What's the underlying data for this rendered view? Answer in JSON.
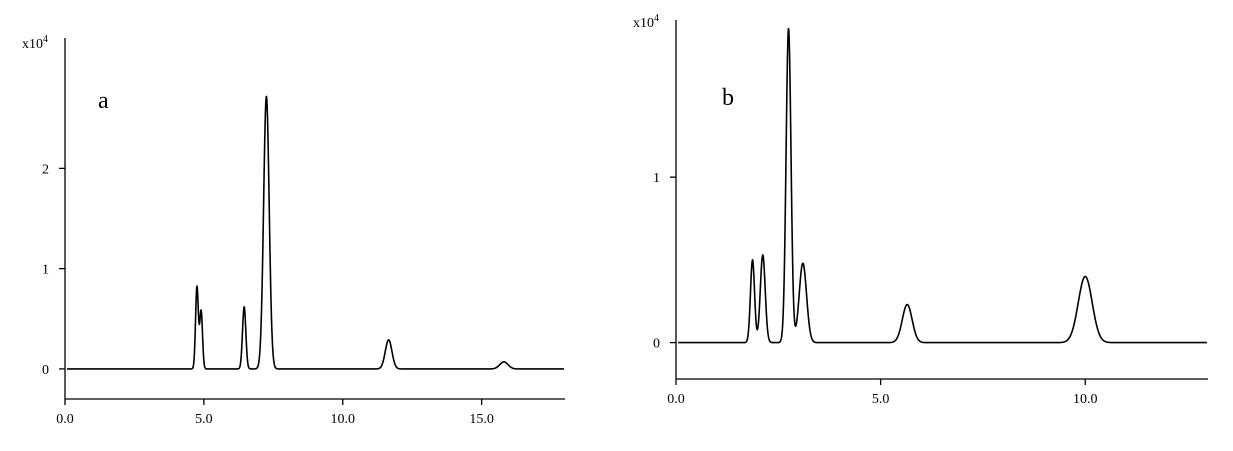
{
  "chart_data": [
    {
      "type": "line",
      "panel_label": "a",
      "y_multiplier": "x10",
      "y_multiplier_exp": "4",
      "xlim": [
        0,
        18
      ],
      "ylim": [
        -0.3,
        3.3
      ],
      "baseline": 0,
      "xticks": [
        {
          "v": 0,
          "label": "0.0"
        },
        {
          "v": 5,
          "label": "5.0"
        },
        {
          "v": 10,
          "label": "10.0"
        },
        {
          "v": 15,
          "label": "15.0"
        }
      ],
      "yticks": [
        {
          "v": 0,
          "label": "0"
        },
        {
          "v": 1,
          "label": "1"
        },
        {
          "v": 2,
          "label": "2"
        }
      ],
      "peaks": [
        {
          "x": 4.75,
          "height": 0.82,
          "width": 0.05
        },
        {
          "x": 4.9,
          "height": 0.58,
          "width": 0.05
        },
        {
          "x": 6.45,
          "height": 0.62,
          "width": 0.06
        },
        {
          "x": 7.25,
          "height": 2.72,
          "width": 0.1
        },
        {
          "x": 11.65,
          "height": 0.29,
          "width": 0.12
        },
        {
          "x": 15.8,
          "height": 0.07,
          "width": 0.15
        }
      ]
    },
    {
      "type": "line",
      "panel_label": "b",
      "y_multiplier": "x10",
      "y_multiplier_exp": "4",
      "xlim": [
        0,
        13
      ],
      "ylim": [
        -0.22,
        1.95
      ],
      "baseline": 0,
      "xticks": [
        {
          "v": 0,
          "label": "0.0"
        },
        {
          "v": 5,
          "label": "5.0"
        },
        {
          "v": 10,
          "label": "10.0"
        }
      ],
      "yticks": [
        {
          "v": 0,
          "label": "0"
        },
        {
          "v": 1,
          "label": "1"
        }
      ],
      "peaks": [
        {
          "x": 1.87,
          "height": 0.5,
          "width": 0.05
        },
        {
          "x": 2.12,
          "height": 0.53,
          "width": 0.06
        },
        {
          "x": 2.75,
          "height": 1.9,
          "width": 0.06
        },
        {
          "x": 3.1,
          "height": 0.48,
          "width": 0.09
        },
        {
          "x": 5.65,
          "height": 0.23,
          "width": 0.12
        },
        {
          "x": 10.0,
          "height": 0.4,
          "width": 0.17
        }
      ]
    }
  ]
}
